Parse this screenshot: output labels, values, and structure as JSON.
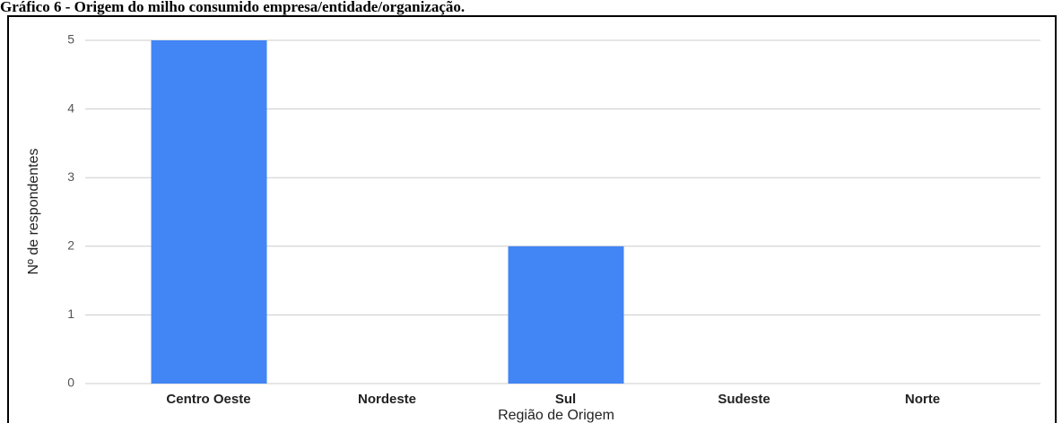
{
  "chart_data": {
    "type": "bar",
    "title": "Gráfico 6 - Origem do milho consumido empresa/entidade/organização.",
    "x_label": "Região de Origem",
    "y_label": "Nº de respondentes",
    "categories": [
      "Centro Oeste",
      "Nordeste",
      "Sul",
      "Sudeste",
      "Norte"
    ],
    "values": [
      5,
      0,
      2,
      0,
      0
    ],
    "color": "#4285f4",
    "ylim": [
      0,
      5
    ],
    "yticks": [
      0,
      1,
      2,
      3,
      4,
      5
    ],
    "grid": true
  }
}
